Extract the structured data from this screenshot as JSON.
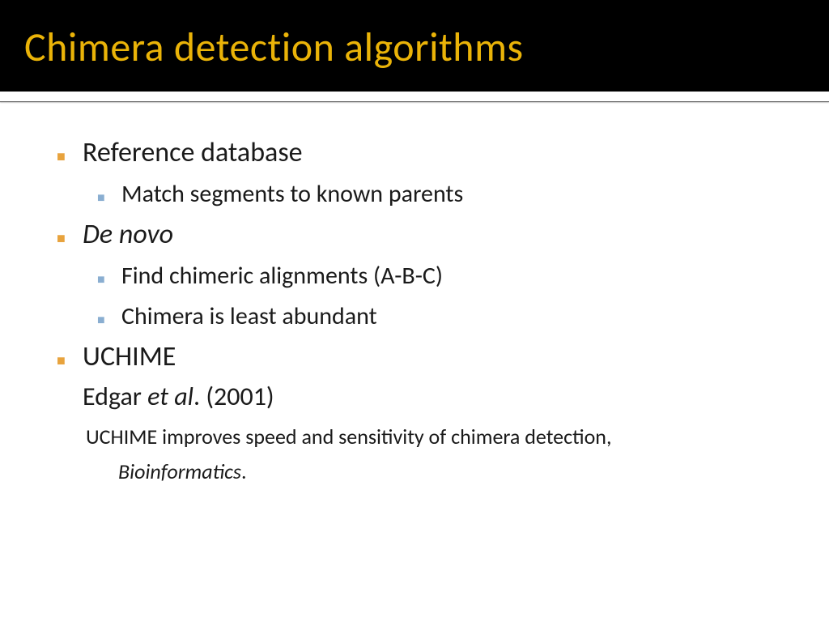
{
  "slide": {
    "title": "Chimera detection algorithms",
    "title_color": "#eab308",
    "header_bg": "#000000",
    "body_bg": "#ffffff",
    "body_text_color": "#1a1a1a",
    "bullet_l1_color": "#e8a33d",
    "bullet_l2_color": "#8aaed1",
    "title_fontsize": 50,
    "l1_fontsize": 34,
    "l2_fontsize": 30,
    "cite_fontsize": 32,
    "ref_fontsize": 26
  },
  "items": {
    "b1": "Reference database",
    "b1_1": "Match segments to known parents",
    "b2": "De novo",
    "b2_1": "Find chimeric alignments (A-B-C)",
    "b2_2": "Chimera is least abundant",
    "b3": "UCHIME",
    "cite_pre": "Edgar ",
    "cite_em": "et al",
    "cite_post": ". (2001)",
    "ref1": "UCHIME improves speed and sensitivity of chimera detection,",
    "ref2_em": "Bioinformatics",
    "ref2_post": "."
  }
}
